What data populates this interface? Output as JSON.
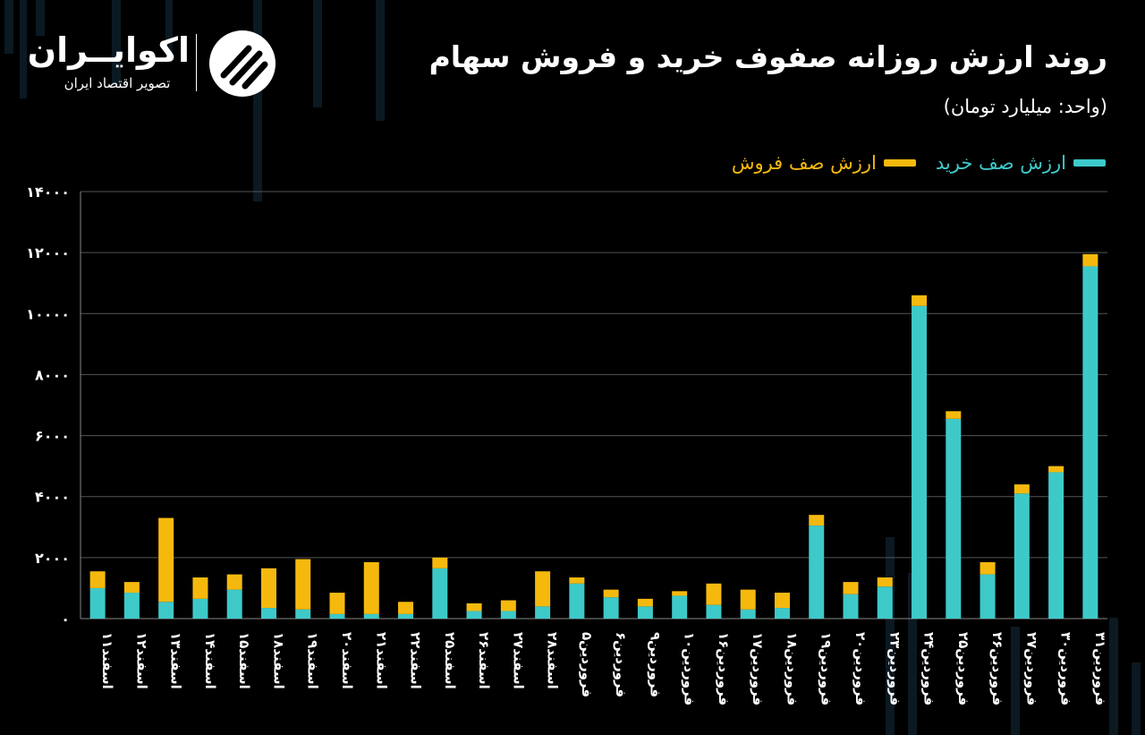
{
  "logo": {
    "name": "اکوایــران",
    "tagline": "تصویر اقتصاد ایران"
  },
  "colors": {
    "buy": "#3ec9c9",
    "sell": "#f5b90e",
    "background": "#000000",
    "grid": "#555555"
  },
  "chart_data": {
    "type": "bar",
    "stacked": true,
    "title": "روند ارزش روزانه صفوف خرید و فروش سهام",
    "subtitle": "(واحد: میلیارد تومان)",
    "ylim": [
      0,
      14000
    ],
    "yticks": [
      "۰",
      "۲۰۰۰",
      "۴۰۰۰",
      "۶۰۰۰",
      "۸۰۰۰",
      "۱۰۰۰۰",
      "۱۲۰۰۰",
      "۱۴۰۰۰"
    ],
    "ytick_values": [
      0,
      2000,
      4000,
      6000,
      8000,
      10000,
      12000,
      14000
    ],
    "grid": true,
    "legend_position": "top-right",
    "categories": [
      "اسفند۱۱",
      "اسفند۱۲",
      "اسفند۱۳",
      "اسفند۱۴",
      "اسفند۱۵",
      "اسفند۱۸",
      "اسفند۱۹",
      "اسفند۲۰",
      "اسفند۲۱",
      "اسفند۲۲",
      "اسفند۲۵",
      "اسفند۲۶",
      "اسفند۲۷",
      "اسفند۲۸",
      "فروردین۵",
      "فروردین۶",
      "فروردین۹",
      "فروردین۱۰",
      "فروردین۱۶",
      "فروردین۱۷",
      "فروردین۱۸",
      "فروردین۱۹",
      "فروردین۲۰",
      "فروردین۲۳",
      "فروردین۲۴",
      "فروردین۲۵",
      "فروردین۲۶",
      "فروردین۲۷",
      "فروردین۳۰",
      "فروردین۳۱"
    ],
    "series": [
      {
        "name": "ارزش صف خرید",
        "values": [
          1000,
          850,
          550,
          650,
          950,
          350,
          300,
          150,
          150,
          150,
          1650,
          250,
          250,
          400,
          1150,
          700,
          400,
          750,
          450,
          300,
          350,
          3050,
          800,
          1050,
          10250,
          6550,
          1450,
          4100,
          4800,
          11550
        ]
      },
      {
        "name": "ارزش صف فروش",
        "values": [
          550,
          350,
          2750,
          700,
          500,
          1300,
          1650,
          700,
          1700,
          400,
          350,
          250,
          350,
          1150,
          200,
          250,
          250,
          150,
          700,
          650,
          500,
          350,
          400,
          300,
          350,
          250,
          400,
          300,
          200,
          400
        ]
      }
    ]
  }
}
